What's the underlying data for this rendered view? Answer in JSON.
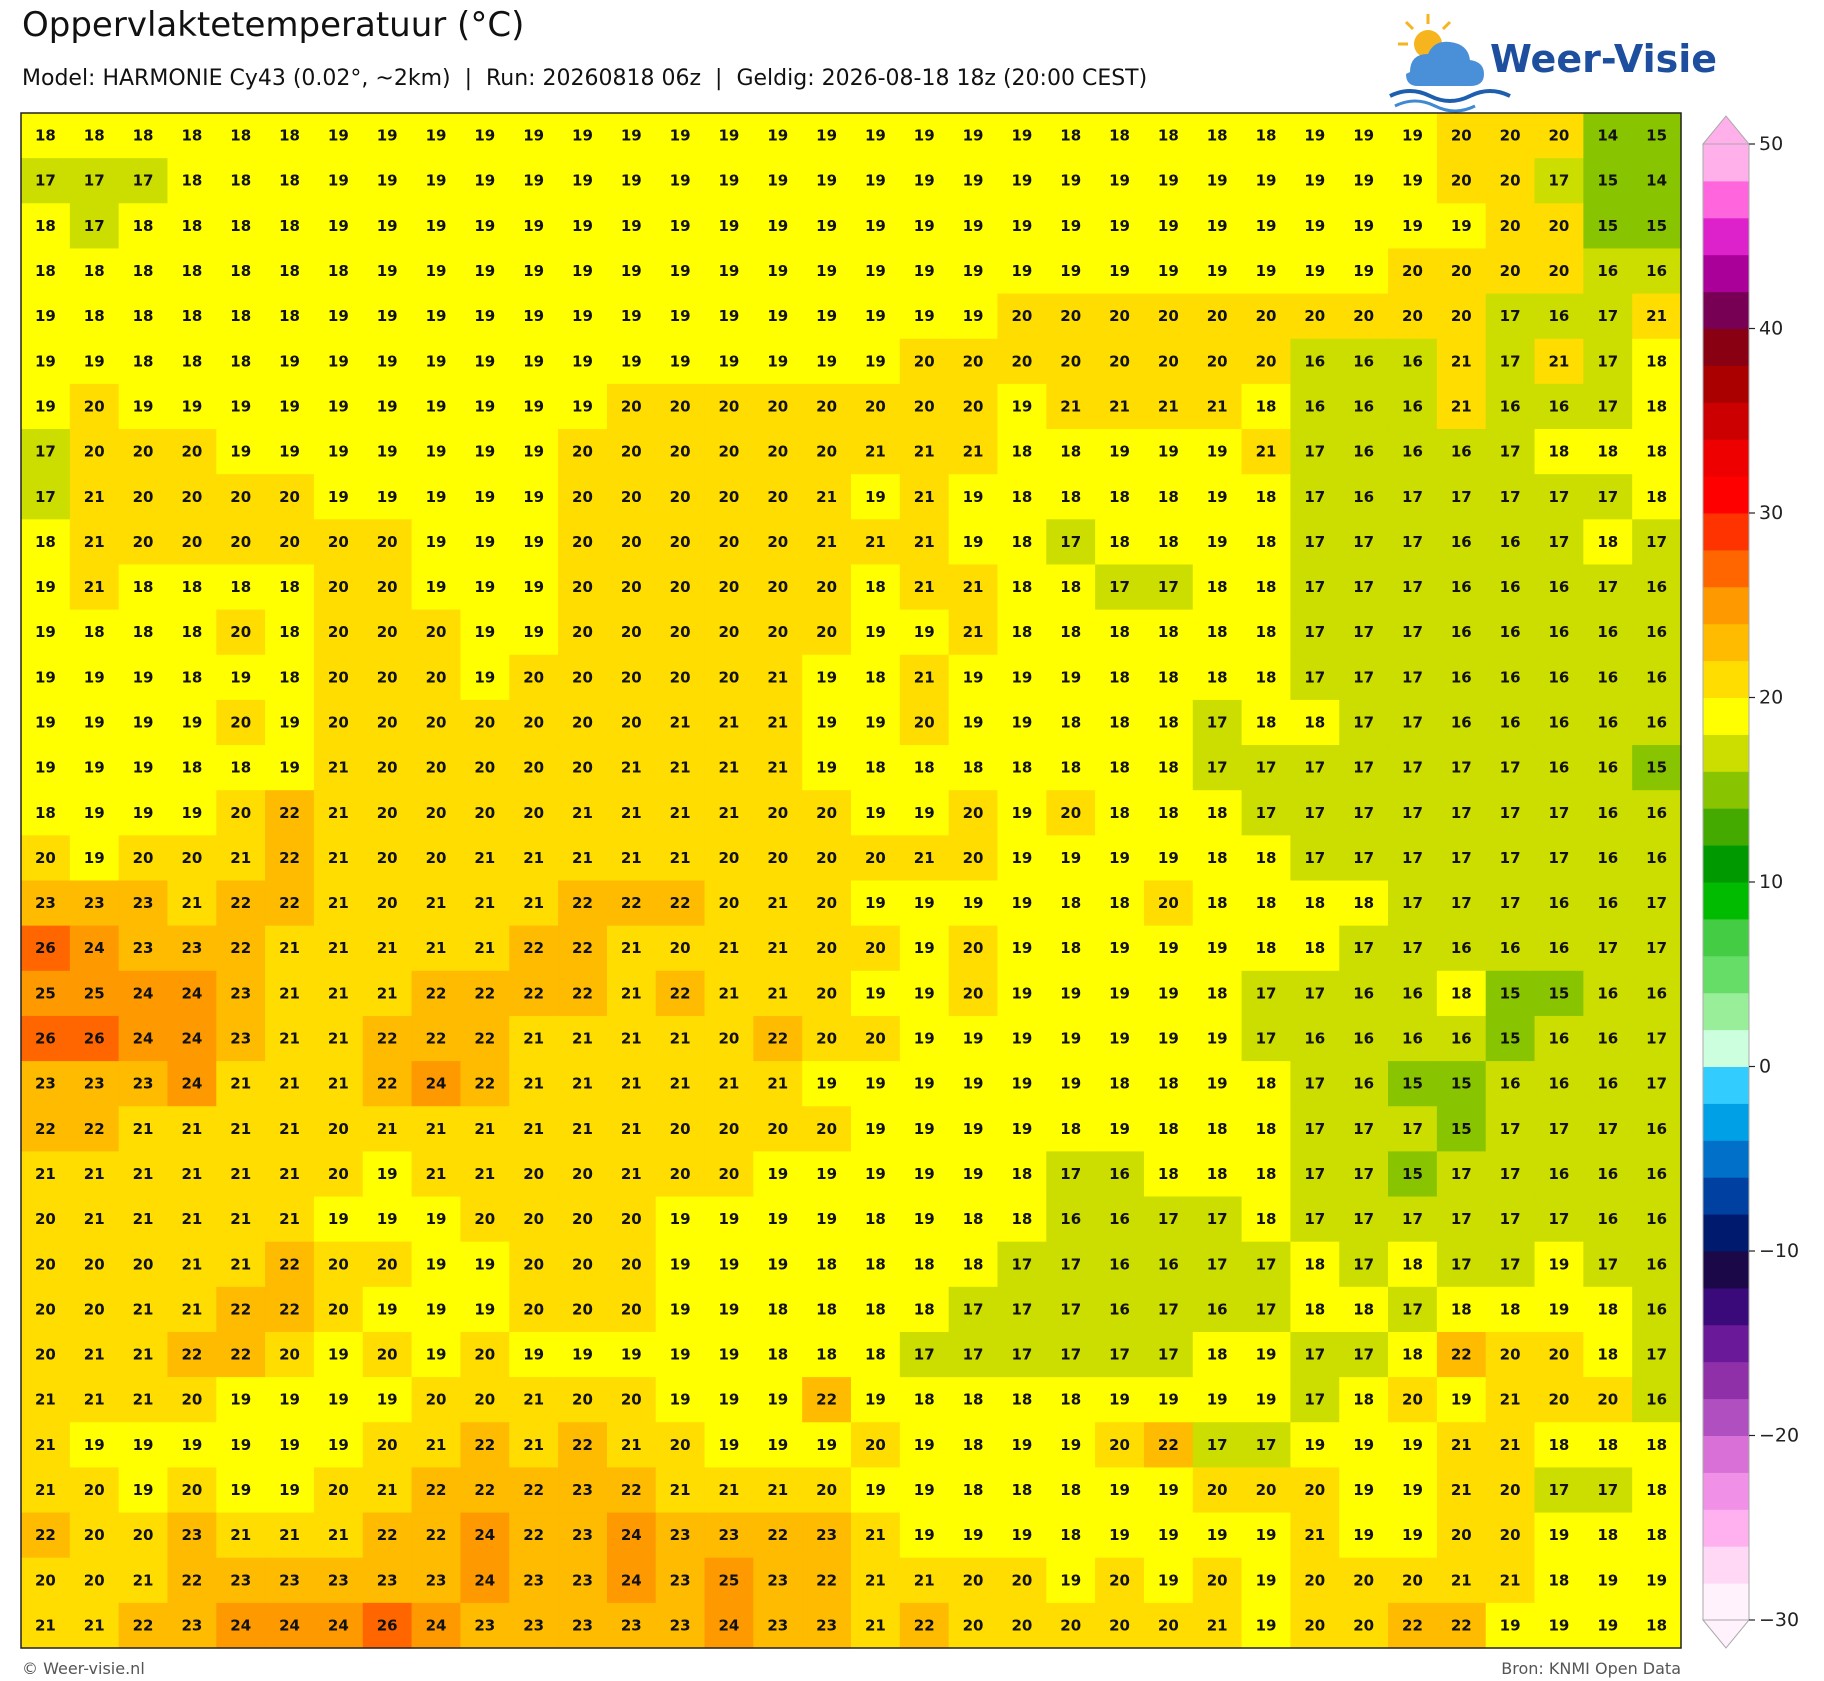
{
  "header": {
    "title": "Oppervlaktetemperatuur (°C)",
    "subtitle": "Model: HARMONIE Cy43 (0.02°, ~2km)  |  Run: 20260818 06z  |  Geldig: 2026-08-18 18z (20:00 CEST)",
    "logo": "Weer-Visie"
  },
  "chart_data": {
    "type": "heatmap",
    "values": [
      [
        18,
        18,
        18,
        18,
        18,
        18,
        19,
        19,
        19,
        19,
        19,
        19,
        19,
        19,
        19,
        19,
        19,
        19,
        19,
        19,
        19,
        18,
        18,
        18,
        18,
        18,
        19,
        19,
        19,
        20,
        20,
        20,
        14,
        15
      ],
      [
        17,
        17,
        17,
        18,
        18,
        18,
        19,
        19,
        19,
        19,
        19,
        19,
        19,
        19,
        19,
        19,
        19,
        19,
        19,
        19,
        19,
        19,
        19,
        19,
        19,
        19,
        19,
        19,
        19,
        20,
        20,
        17,
        15,
        14
      ],
      [
        18,
        17,
        18,
        18,
        18,
        18,
        19,
        19,
        19,
        19,
        19,
        19,
        19,
        19,
        19,
        19,
        19,
        19,
        19,
        19,
        19,
        19,
        19,
        19,
        19,
        19,
        19,
        19,
        19,
        19,
        20,
        20,
        15,
        15
      ],
      [
        18,
        18,
        18,
        18,
        18,
        18,
        18,
        19,
        19,
        19,
        19,
        19,
        19,
        19,
        19,
        19,
        19,
        19,
        19,
        19,
        19,
        19,
        19,
        19,
        19,
        19,
        19,
        19,
        20,
        20,
        20,
        20,
        16,
        16
      ],
      [
        19,
        18,
        18,
        18,
        18,
        18,
        19,
        19,
        19,
        19,
        19,
        19,
        19,
        19,
        19,
        19,
        19,
        19,
        19,
        19,
        20,
        20,
        20,
        20,
        20,
        20,
        20,
        20,
        20,
        20,
        17,
        16,
        17,
        21
      ],
      [
        19,
        19,
        18,
        18,
        18,
        19,
        19,
        19,
        19,
        19,
        19,
        19,
        19,
        19,
        19,
        19,
        19,
        19,
        20,
        20,
        20,
        20,
        20,
        20,
        20,
        20,
        16,
        16,
        16,
        21,
        17,
        21,
        17,
        18
      ],
      [
        19,
        20,
        19,
        19,
        19,
        19,
        19,
        19,
        19,
        19,
        19,
        19,
        20,
        20,
        20,
        20,
        20,
        20,
        20,
        20,
        19,
        21,
        21,
        21,
        21,
        18,
        16,
        16,
        16,
        21,
        16,
        16,
        17,
        18
      ],
      [
        17,
        20,
        20,
        20,
        19,
        19,
        19,
        19,
        19,
        19,
        19,
        20,
        20,
        20,
        20,
        20,
        20,
        21,
        21,
        21,
        18,
        18,
        19,
        19,
        19,
        21,
        17,
        16,
        16,
        16,
        17,
        18,
        18,
        18
      ],
      [
        17,
        21,
        20,
        20,
        20,
        20,
        19,
        19,
        19,
        19,
        19,
        20,
        20,
        20,
        20,
        20,
        21,
        19,
        21,
        19,
        18,
        18,
        18,
        18,
        19,
        18,
        17,
        16,
        17,
        17,
        17,
        17,
        17,
        18
      ],
      [
        18,
        21,
        20,
        20,
        20,
        20,
        20,
        20,
        19,
        19,
        19,
        20,
        20,
        20,
        20,
        20,
        21,
        21,
        21,
        19,
        18,
        17,
        18,
        18,
        19,
        18,
        17,
        17,
        17,
        16,
        16,
        17,
        18,
        17
      ],
      [
        19,
        21,
        18,
        18,
        18,
        18,
        20,
        20,
        19,
        19,
        19,
        20,
        20,
        20,
        20,
        20,
        20,
        18,
        21,
        21,
        18,
        18,
        17,
        17,
        18,
        18,
        17,
        17,
        17,
        16,
        16,
        16,
        17,
        16
      ],
      [
        19,
        18,
        18,
        18,
        20,
        18,
        20,
        20,
        20,
        19,
        19,
        20,
        20,
        20,
        20,
        20,
        20,
        19,
        19,
        21,
        18,
        18,
        18,
        18,
        18,
        18,
        17,
        17,
        17,
        16,
        16,
        16,
        16,
        16
      ],
      [
        19,
        19,
        19,
        18,
        19,
        18,
        20,
        20,
        20,
        19,
        20,
        20,
        20,
        20,
        20,
        21,
        19,
        18,
        21,
        19,
        19,
        19,
        18,
        18,
        18,
        18,
        17,
        17,
        17,
        16,
        16,
        16,
        16,
        16
      ],
      [
        19,
        19,
        19,
        19,
        20,
        19,
        20,
        20,
        20,
        20,
        20,
        20,
        20,
        21,
        21,
        21,
        19,
        19,
        20,
        19,
        19,
        18,
        18,
        18,
        17,
        18,
        18,
        17,
        17,
        16,
        16,
        16,
        16,
        16
      ],
      [
        19,
        19,
        19,
        18,
        18,
        19,
        21,
        20,
        20,
        20,
        20,
        20,
        21,
        21,
        21,
        21,
        19,
        18,
        18,
        18,
        18,
        18,
        18,
        18,
        17,
        17,
        17,
        17,
        17,
        17,
        17,
        16,
        16,
        15
      ],
      [
        18,
        19,
        19,
        19,
        20,
        22,
        21,
        20,
        20,
        20,
        20,
        21,
        21,
        21,
        21,
        20,
        20,
        19,
        19,
        20,
        19,
        20,
        18,
        18,
        18,
        17,
        17,
        17,
        17,
        17,
        17,
        17,
        16,
        16
      ],
      [
        20,
        19,
        20,
        20,
        21,
        22,
        21,
        20,
        20,
        21,
        21,
        21,
        21,
        21,
        20,
        20,
        20,
        20,
        21,
        20,
        19,
        19,
        19,
        19,
        18,
        18,
        17,
        17,
        17,
        17,
        17,
        17,
        16,
        16
      ],
      [
        23,
        23,
        23,
        21,
        22,
        22,
        21,
        20,
        21,
        21,
        21,
        22,
        22,
        22,
        20,
        21,
        20,
        19,
        19,
        19,
        19,
        18,
        18,
        20,
        18,
        18,
        18,
        18,
        17,
        17,
        17,
        16,
        16,
        17
      ],
      [
        26,
        24,
        23,
        23,
        22,
        21,
        21,
        21,
        21,
        21,
        22,
        22,
        21,
        20,
        21,
        21,
        20,
        20,
        19,
        20,
        19,
        18,
        19,
        19,
        19,
        18,
        18,
        17,
        17,
        16,
        16,
        16,
        17,
        17
      ],
      [
        25,
        25,
        24,
        24,
        23,
        21,
        21,
        21,
        22,
        22,
        22,
        22,
        21,
        22,
        21,
        21,
        20,
        19,
        19,
        20,
        19,
        19,
        19,
        19,
        18,
        17,
        17,
        16,
        16,
        18,
        15,
        15,
        16,
        16
      ],
      [
        26,
        26,
        24,
        24,
        23,
        21,
        21,
        22,
        22,
        22,
        21,
        21,
        21,
        21,
        20,
        22,
        20,
        20,
        19,
        19,
        19,
        19,
        19,
        19,
        19,
        17,
        16,
        16,
        16,
        16,
        15,
        16,
        16,
        17
      ],
      [
        23,
        23,
        23,
        24,
        21,
        21,
        21,
        22,
        24,
        22,
        21,
        21,
        21,
        21,
        21,
        21,
        19,
        19,
        19,
        19,
        19,
        19,
        18,
        18,
        19,
        18,
        17,
        16,
        15,
        15,
        16,
        16,
        16,
        17
      ],
      [
        22,
        22,
        21,
        21,
        21,
        21,
        20,
        21,
        21,
        21,
        21,
        21,
        21,
        20,
        20,
        20,
        20,
        19,
        19,
        19,
        19,
        18,
        19,
        18,
        18,
        18,
        17,
        17,
        17,
        15,
        17,
        17,
        17,
        16
      ],
      [
        21,
        21,
        21,
        21,
        21,
        21,
        20,
        19,
        21,
        21,
        20,
        20,
        21,
        20,
        20,
        19,
        19,
        19,
        19,
        19,
        18,
        17,
        16,
        18,
        18,
        18,
        17,
        17,
        15,
        17,
        17,
        16,
        16,
        16
      ],
      [
        20,
        21,
        21,
        21,
        21,
        21,
        19,
        19,
        19,
        20,
        20,
        20,
        20,
        19,
        19,
        19,
        19,
        18,
        19,
        18,
        18,
        16,
        16,
        17,
        17,
        18,
        17,
        17,
        17,
        17,
        17,
        17,
        16,
        16
      ],
      [
        20,
        20,
        20,
        21,
        21,
        22,
        20,
        20,
        19,
        19,
        20,
        20,
        20,
        19,
        19,
        19,
        18,
        18,
        18,
        18,
        17,
        17,
        16,
        16,
        17,
        17,
        18,
        17,
        18,
        17,
        17,
        19,
        17,
        16
      ],
      [
        20,
        20,
        21,
        21,
        22,
        22,
        20,
        19,
        19,
        19,
        20,
        20,
        20,
        19,
        19,
        18,
        18,
        18,
        18,
        17,
        17,
        17,
        16,
        17,
        16,
        17,
        18,
        18,
        17,
        18,
        18,
        19,
        18,
        16
      ],
      [
        20,
        21,
        21,
        22,
        22,
        20,
        19,
        20,
        19,
        20,
        19,
        19,
        19,
        19,
        19,
        18,
        18,
        18,
        17,
        17,
        17,
        17,
        17,
        17,
        18,
        19,
        17,
        17,
        18,
        22,
        20,
        20,
        18,
        17
      ],
      [
        21,
        21,
        21,
        20,
        19,
        19,
        19,
        19,
        20,
        20,
        21,
        20,
        20,
        19,
        19,
        19,
        22,
        19,
        18,
        18,
        18,
        18,
        19,
        19,
        19,
        19,
        17,
        18,
        20,
        19,
        21,
        20,
        20,
        16
      ],
      [
        21,
        19,
        19,
        19,
        19,
        19,
        19,
        20,
        21,
        22,
        21,
        22,
        21,
        20,
        19,
        19,
        19,
        20,
        19,
        18,
        19,
        19,
        20,
        22,
        17,
        17,
        19,
        19,
        19,
        21,
        21,
        18,
        18,
        18
      ],
      [
        21,
        20,
        19,
        20,
        19,
        19,
        20,
        21,
        22,
        22,
        22,
        23,
        22,
        21,
        21,
        21,
        20,
        19,
        19,
        18,
        18,
        18,
        19,
        19,
        20,
        20,
        20,
        19,
        19,
        21,
        20,
        17,
        17,
        18
      ],
      [
        22,
        20,
        20,
        23,
        21,
        21,
        21,
        22,
        22,
        24,
        22,
        23,
        24,
        23,
        23,
        22,
        23,
        21,
        19,
        19,
        19,
        18,
        19,
        19,
        19,
        19,
        21,
        19,
        19,
        20,
        20,
        19,
        18,
        18
      ],
      [
        20,
        20,
        21,
        22,
        23,
        23,
        23,
        23,
        23,
        24,
        23,
        23,
        24,
        23,
        25,
        23,
        22,
        21,
        21,
        20,
        20,
        19,
        20,
        19,
        20,
        19,
        20,
        20,
        20,
        21,
        21,
        18,
        19,
        19
      ],
      [
        21,
        21,
        22,
        23,
        24,
        24,
        24,
        26,
        24,
        23,
        23,
        23,
        23,
        23,
        24,
        23,
        23,
        21,
        22,
        20,
        20,
        20,
        20,
        20,
        21,
        19,
        20,
        20,
        22,
        22,
        19,
        19,
        19,
        18
      ]
    ],
    "clim": [
      -30,
      50
    ],
    "cticks": [
      50,
      40,
      30,
      20,
      10,
      0,
      {
        "value": -10,
        "label": "−10"
      },
      {
        "value": -20,
        "label": "−20"
      },
      {
        "value": -30,
        "label": "−30"
      }
    ],
    "colors": [
      "#fff2fc",
      "#ffd8f6",
      "#ffb0ee",
      "#f090e6",
      "#d870d8",
      "#b050c0",
      "#9030a8",
      "#6a1a98",
      "#3a0a7a",
      "#1a0848",
      "#001a6e",
      "#0040a0",
      "#0070c8",
      "#00a0e6",
      "#33ccff",
      "#ccffdd",
      "#99ee99",
      "#66dd66",
      "#44cc44",
      "#00bb00",
      "#009900",
      "#44aa00",
      "#88c400",
      "#ccdd00",
      "#ffff00",
      "#ffdd00",
      "#ffbb00",
      "#ff9900",
      "#ff6600",
      "#ff3300",
      "#ff0000",
      "#ee0000",
      "#cc0000",
      "#aa0000",
      "#880011",
      "#770055",
      "#aa0099",
      "#dd22cc",
      "#ff66dd",
      "#ffb0ea"
    ]
  },
  "footer": {
    "left": "© Weer-visie.nl",
    "right": "Bron: KNMI Open Data"
  }
}
